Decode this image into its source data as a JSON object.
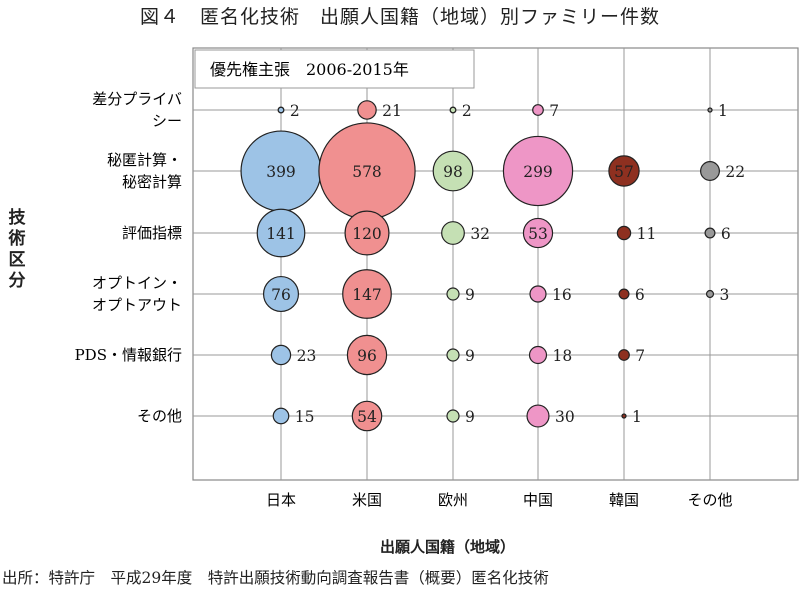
{
  "title": "図４　匿名化技術　出願人国籍（地域）別ファミリー件数",
  "source": "出所：特許庁　平成29年度　特許出願技術動向調査報告書（概要）匿名化技術",
  "chart_data": {
    "type": "scatter",
    "subtype": "bubble",
    "annotation": "優先権主張　2006-2015年",
    "xlabel": "出願人国籍（地域）",
    "ylabel": "技術区分",
    "x_categories": [
      "日本",
      "米国",
      "欧州",
      "中国",
      "韓国",
      "その他"
    ],
    "y_categories": [
      [
        "差分プライバ",
        "シー"
      ],
      [
        "秘匿計算・",
        "秘密計算"
      ],
      [
        "評価指標"
      ],
      [
        "オプトイン・",
        "オプトアウト"
      ],
      [
        "PDS・情報銀行"
      ],
      [
        "その他"
      ]
    ],
    "series": [
      {
        "category": "日本",
        "color": "#9dc3e6",
        "values": [
          2,
          399,
          141,
          76,
          23,
          15
        ]
      },
      {
        "category": "米国",
        "color": "#f09090",
        "values": [
          21,
          578,
          120,
          147,
          96,
          54
        ]
      },
      {
        "category": "欧州",
        "color": "#c5e0b4",
        "values": [
          2,
          98,
          32,
          9,
          9,
          9
        ]
      },
      {
        "category": "中国",
        "color": "#ee96c6",
        "values": [
          7,
          299,
          53,
          16,
          18,
          30
        ]
      },
      {
        "category": "韓国",
        "color": "#8e3020",
        "values": [
          null,
          57,
          11,
          6,
          7,
          1
        ]
      },
      {
        "category": "その他",
        "color": "#999999",
        "values": [
          1,
          22,
          6,
          3,
          null,
          null
        ]
      }
    ],
    "grid": true,
    "bubble_area_proportional_to_value": true
  }
}
